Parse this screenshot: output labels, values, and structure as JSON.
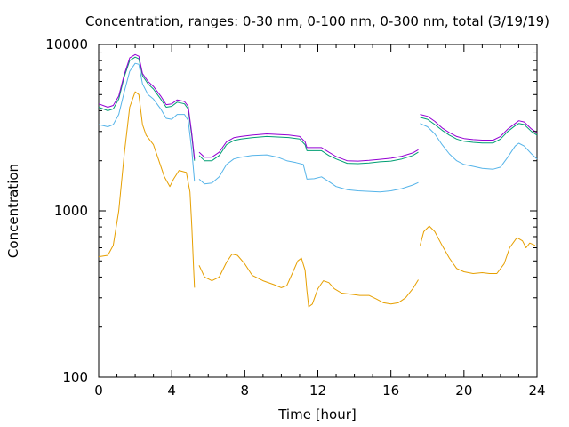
{
  "chart_data": {
    "type": "line",
    "title": "Concentration, ranges: 0-30 nm, 0-100 nm, 0-300 nm, total (3/19/19)",
    "xlabel": "Time [hour]",
    "ylabel": "Concentration",
    "xlim": [
      0,
      24
    ],
    "ylim": [
      100,
      10000
    ],
    "yscale": "log",
    "grid": false,
    "legend": "none",
    "x_ticks": [
      "0",
      "4",
      "8",
      "12",
      "16",
      "20",
      "24"
    ],
    "y_ticks": [
      "100",
      "1000",
      "10000"
    ],
    "series": [
      {
        "color": "#e69f00",
        "segments": [
          [
            [
              0,
              530
            ],
            [
              0.5,
              540
            ],
            [
              0.8,
              620
            ],
            [
              1.1,
              1000
            ],
            [
              1.4,
              2200
            ],
            [
              1.7,
              4200
            ],
            [
              2.0,
              5200
            ],
            [
              2.2,
              5000
            ],
            [
              2.4,
              3300
            ],
            [
              2.6,
              2850
            ],
            [
              3.0,
              2500
            ],
            [
              3.3,
              2000
            ],
            [
              3.6,
              1600
            ],
            [
              3.9,
              1400
            ],
            [
              4.1,
              1550
            ],
            [
              4.4,
              1750
            ],
            [
              4.8,
              1700
            ],
            [
              5.0,
              1300
            ],
            [
              5.1,
              800
            ],
            [
              5.2,
              450
            ],
            [
              5.25,
              345
            ]
          ],
          [
            [
              5.5,
              470
            ],
            [
              5.8,
              400
            ],
            [
              6.2,
              380
            ],
            [
              6.6,
              400
            ],
            [
              7.0,
              490
            ],
            [
              7.3,
              550
            ],
            [
              7.6,
              540
            ],
            [
              8.0,
              480
            ],
            [
              8.4,
              410
            ],
            [
              9.0,
              380
            ],
            [
              9.6,
              360
            ],
            [
              10.0,
              345
            ],
            [
              10.3,
              355
            ],
            [
              10.6,
              420
            ],
            [
              10.9,
              500
            ],
            [
              11.1,
              520
            ],
            [
              11.3,
              440
            ],
            [
              11.4,
              330
            ],
            [
              11.5,
              265
            ],
            [
              11.7,
              275
            ],
            [
              12.0,
              340
            ],
            [
              12.3,
              380
            ],
            [
              12.6,
              370
            ],
            [
              12.9,
              340
            ],
            [
              13.3,
              320
            ],
            [
              13.8,
              315
            ],
            [
              14.3,
              310
            ],
            [
              14.8,
              310
            ],
            [
              15.2,
              295
            ],
            [
              15.6,
              280
            ],
            [
              16.0,
              275
            ],
            [
              16.4,
              280
            ],
            [
              16.8,
              300
            ],
            [
              17.2,
              340
            ],
            [
              17.5,
              385
            ]
          ],
          [
            [
              17.6,
              620
            ],
            [
              17.8,
              750
            ],
            [
              18.1,
              810
            ],
            [
              18.4,
              750
            ],
            [
              18.8,
              620
            ],
            [
              19.2,
              520
            ],
            [
              19.6,
              450
            ],
            [
              20.0,
              430
            ],
            [
              20.5,
              420
            ],
            [
              21.0,
              425
            ],
            [
              21.4,
              420
            ],
            [
              21.8,
              420
            ],
            [
              22.2,
              480
            ],
            [
              22.5,
              600
            ],
            [
              22.9,
              690
            ],
            [
              23.2,
              660
            ],
            [
              23.4,
              600
            ],
            [
              23.6,
              640
            ],
            [
              23.9,
              620
            ]
          ]
        ]
      },
      {
        "color": "#56b4e9",
        "segments": [
          [
            [
              0,
              3300
            ],
            [
              0.5,
              3200
            ],
            [
              0.8,
              3300
            ],
            [
              1.1,
              3800
            ],
            [
              1.4,
              5200
            ],
            [
              1.7,
              6900
            ],
            [
              2.0,
              7700
            ],
            [
              2.2,
              7600
            ],
            [
              2.4,
              5800
            ],
            [
              2.7,
              5000
            ],
            [
              3.0,
              4700
            ],
            [
              3.4,
              4100
            ],
            [
              3.7,
              3600
            ],
            [
              4.0,
              3550
            ],
            [
              4.3,
              3800
            ],
            [
              4.7,
              3800
            ],
            [
              4.9,
              3500
            ],
            [
              5.1,
              2300
            ],
            [
              5.25,
              1500
            ]
          ],
          [
            [
              5.5,
              1550
            ],
            [
              5.8,
              1450
            ],
            [
              6.2,
              1470
            ],
            [
              6.6,
              1600
            ],
            [
              7.0,
              1900
            ],
            [
              7.4,
              2050
            ],
            [
              7.8,
              2100
            ],
            [
              8.4,
              2150
            ],
            [
              9.2,
              2170
            ],
            [
              9.8,
              2100
            ],
            [
              10.3,
              2000
            ],
            [
              10.8,
              1950
            ],
            [
              11.2,
              1900
            ],
            [
              11.4,
              1550
            ],
            [
              11.8,
              1560
            ],
            [
              12.2,
              1600
            ],
            [
              12.6,
              1500
            ],
            [
              13.0,
              1400
            ],
            [
              13.6,
              1340
            ],
            [
              14.2,
              1320
            ],
            [
              14.8,
              1310
            ],
            [
              15.4,
              1300
            ],
            [
              16.0,
              1320
            ],
            [
              16.6,
              1360
            ],
            [
              17.2,
              1430
            ],
            [
              17.5,
              1480
            ]
          ],
          [
            [
              17.6,
              3350
            ],
            [
              18.0,
              3200
            ],
            [
              18.4,
              2900
            ],
            [
              18.8,
              2500
            ],
            [
              19.2,
              2200
            ],
            [
              19.6,
              2000
            ],
            [
              20.0,
              1900
            ],
            [
              20.5,
              1850
            ],
            [
              21.0,
              1800
            ],
            [
              21.6,
              1780
            ],
            [
              22.0,
              1830
            ],
            [
              22.4,
              2100
            ],
            [
              22.8,
              2450
            ],
            [
              23.0,
              2550
            ],
            [
              23.3,
              2450
            ],
            [
              23.7,
              2200
            ],
            [
              24.0,
              2050
            ]
          ]
        ]
      },
      {
        "color": "#009e73",
        "segments": [
          [
            [
              0,
              4200
            ],
            [
              0.5,
              4000
            ],
            [
              0.8,
              4100
            ],
            [
              1.1,
              4700
            ],
            [
              1.4,
              6400
            ],
            [
              1.7,
              8000
            ],
            [
              2.0,
              8400
            ],
            [
              2.2,
              8200
            ],
            [
              2.4,
              6500
            ],
            [
              2.7,
              5800
            ],
            [
              3.0,
              5400
            ],
            [
              3.4,
              4700
            ],
            [
              3.7,
              4200
            ],
            [
              4.0,
              4250
            ],
            [
              4.3,
              4500
            ],
            [
              4.7,
              4400
            ],
            [
              4.9,
              4100
            ],
            [
              5.1,
              2800
            ],
            [
              5.25,
              2000
            ]
          ],
          [
            [
              5.5,
              2150
            ],
            [
              5.8,
              2000
            ],
            [
              6.2,
              2000
            ],
            [
              6.6,
              2150
            ],
            [
              7.0,
              2500
            ],
            [
              7.4,
              2650
            ],
            [
              7.8,
              2700
            ],
            [
              8.4,
              2750
            ],
            [
              9.2,
              2800
            ],
            [
              9.8,
              2780
            ],
            [
              10.4,
              2760
            ],
            [
              11.0,
              2700
            ],
            [
              11.3,
              2500
            ],
            [
              11.4,
              2300
            ],
            [
              11.8,
              2300
            ],
            [
              12.2,
              2300
            ],
            [
              12.6,
              2150
            ],
            [
              13.0,
              2050
            ],
            [
              13.6,
              1930
            ],
            [
              14.2,
              1920
            ],
            [
              14.8,
              1940
            ],
            [
              15.4,
              1970
            ],
            [
              16.0,
              1990
            ],
            [
              16.6,
              2050
            ],
            [
              17.2,
              2150
            ],
            [
              17.5,
              2250
            ]
          ],
          [
            [
              17.6,
              3650
            ],
            [
              18.0,
              3550
            ],
            [
              18.4,
              3300
            ],
            [
              18.8,
              3050
            ],
            [
              19.2,
              2850
            ],
            [
              19.6,
              2700
            ],
            [
              20.0,
              2620
            ],
            [
              20.5,
              2580
            ],
            [
              21.0,
              2560
            ],
            [
              21.6,
              2560
            ],
            [
              22.0,
              2700
            ],
            [
              22.4,
              3000
            ],
            [
              22.8,
              3250
            ],
            [
              23.0,
              3350
            ],
            [
              23.3,
              3300
            ],
            [
              23.7,
              3000
            ],
            [
              24.0,
              2850
            ]
          ]
        ]
      },
      {
        "color": "#9400d3",
        "segments": [
          [
            [
              0,
              4400
            ],
            [
              0.5,
              4200
            ],
            [
              0.8,
              4300
            ],
            [
              1.1,
              4900
            ],
            [
              1.4,
              6600
            ],
            [
              1.7,
              8300
            ],
            [
              2.0,
              8700
            ],
            [
              2.2,
              8500
            ],
            [
              2.4,
              6700
            ],
            [
              2.7,
              6000
            ],
            [
              3.0,
              5600
            ],
            [
              3.4,
              4900
            ],
            [
              3.7,
              4350
            ],
            [
              4.0,
              4400
            ],
            [
              4.3,
              4650
            ],
            [
              4.7,
              4550
            ],
            [
              4.9,
              4250
            ],
            [
              5.1,
              2900
            ],
            [
              5.25,
              2050
            ]
          ],
          [
            [
              5.5,
              2250
            ],
            [
              5.8,
              2100
            ],
            [
              6.2,
              2100
            ],
            [
              6.6,
              2250
            ],
            [
              7.0,
              2600
            ],
            [
              7.4,
              2750
            ],
            [
              7.8,
              2800
            ],
            [
              8.4,
              2850
            ],
            [
              9.2,
              2900
            ],
            [
              9.8,
              2880
            ],
            [
              10.4,
              2860
            ],
            [
              11.0,
              2800
            ],
            [
              11.3,
              2600
            ],
            [
              11.4,
              2400
            ],
            [
              11.8,
              2400
            ],
            [
              12.2,
              2400
            ],
            [
              12.6,
              2250
            ],
            [
              13.0,
              2120
            ],
            [
              13.6,
              2000
            ],
            [
              14.2,
              1990
            ],
            [
              14.8,
              2010
            ],
            [
              15.4,
              2040
            ],
            [
              16.0,
              2070
            ],
            [
              16.6,
              2130
            ],
            [
              17.2,
              2230
            ],
            [
              17.5,
              2330
            ]
          ],
          [
            [
              17.6,
              3800
            ],
            [
              18.0,
              3700
            ],
            [
              18.4,
              3450
            ],
            [
              18.8,
              3150
            ],
            [
              19.2,
              2950
            ],
            [
              19.6,
              2800
            ],
            [
              20.0,
              2720
            ],
            [
              20.5,
              2680
            ],
            [
              21.0,
              2660
            ],
            [
              21.6,
              2660
            ],
            [
              22.0,
              2800
            ],
            [
              22.4,
              3100
            ],
            [
              22.8,
              3350
            ],
            [
              23.0,
              3480
            ],
            [
              23.3,
              3420
            ],
            [
              23.7,
              3100
            ],
            [
              24.0,
              2950
            ]
          ]
        ]
      }
    ]
  }
}
